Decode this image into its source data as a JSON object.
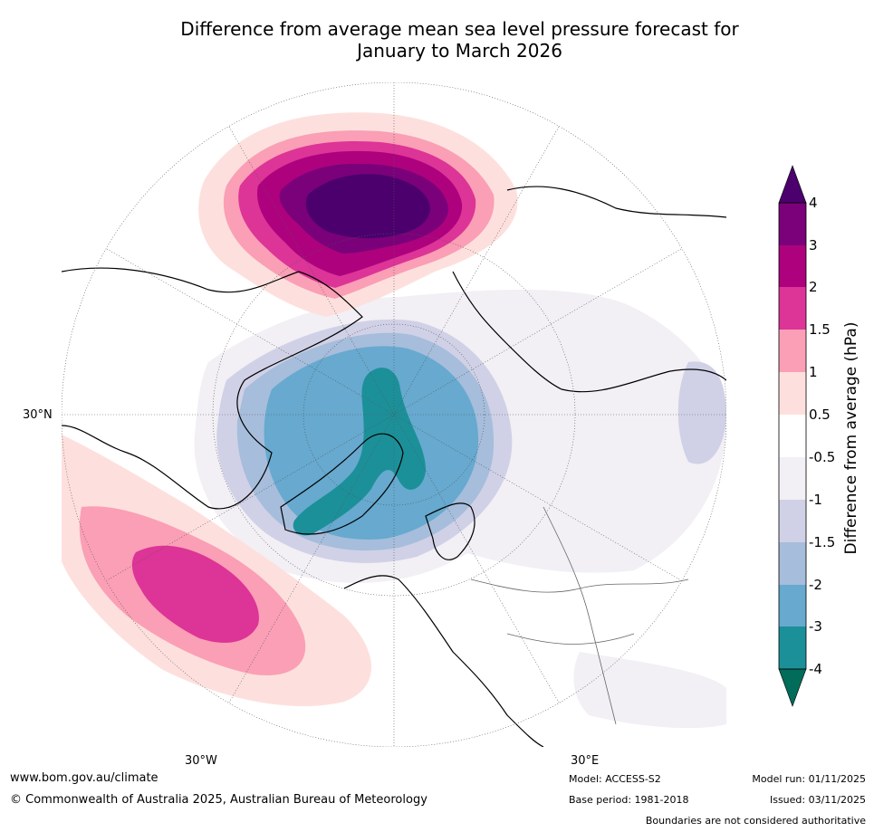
{
  "title": {
    "line1": "Difference from average mean sea level pressure forecast for",
    "line2": "January to March 2026"
  },
  "map": {
    "projection": "north-polar-stereographic",
    "region": "northern-hemisphere-mid-high-latitudes",
    "labels": {
      "lat_30n": "30°N",
      "lon_30w": "30°W",
      "lon_30e": "30°E"
    },
    "features": [
      {
        "name": "North Pacific / Aleutian positive anomaly",
        "peak_hpa": 4
      },
      {
        "name": "North Atlantic positive anomaly",
        "peak_hpa": 2
      },
      {
        "name": "Arctic / Greenland negative anomaly",
        "peak_hpa": -4
      },
      {
        "name": "Weak negative anomaly over Eurasia",
        "peak_hpa": -1.5
      }
    ]
  },
  "colorbar": {
    "title": "Difference from average (hPa)",
    "tick_labels": [
      "4",
      "3",
      "2",
      "1.5",
      "1",
      "0.5",
      "-0.5",
      "-1",
      "-1.5",
      "-2",
      "-3",
      "-4"
    ],
    "colors": {
      "above_4": "#4b006e",
      "c3_4": "#7a0179",
      "c2_3": "#ae017e",
      "c15_2": "#dd3497",
      "c1_15": "#fa9fb5",
      "c05_1": "#fde0dd",
      "neutral": "#ffffff",
      "cm1_m05": "#f2eff5",
      "cm15_m1": "#d0d1e6",
      "cm2_m15": "#a6bddb",
      "cm3_m2": "#67a9cf",
      "cm4_m3": "#1c9099",
      "below_m4": "#016c59"
    }
  },
  "footer": {
    "website": "www.bom.gov.au/climate",
    "copyright": "© Commonwealth of Australia 2025, Australian Bureau of Meteorology",
    "model": "Model: ACCESS-S2",
    "base_period": "Base period: 1981-2018",
    "model_run": "Model run: 01/11/2025",
    "issued": "Issued: 03/11/2025",
    "disclaimer": "Boundaries are not considered authoritative"
  }
}
